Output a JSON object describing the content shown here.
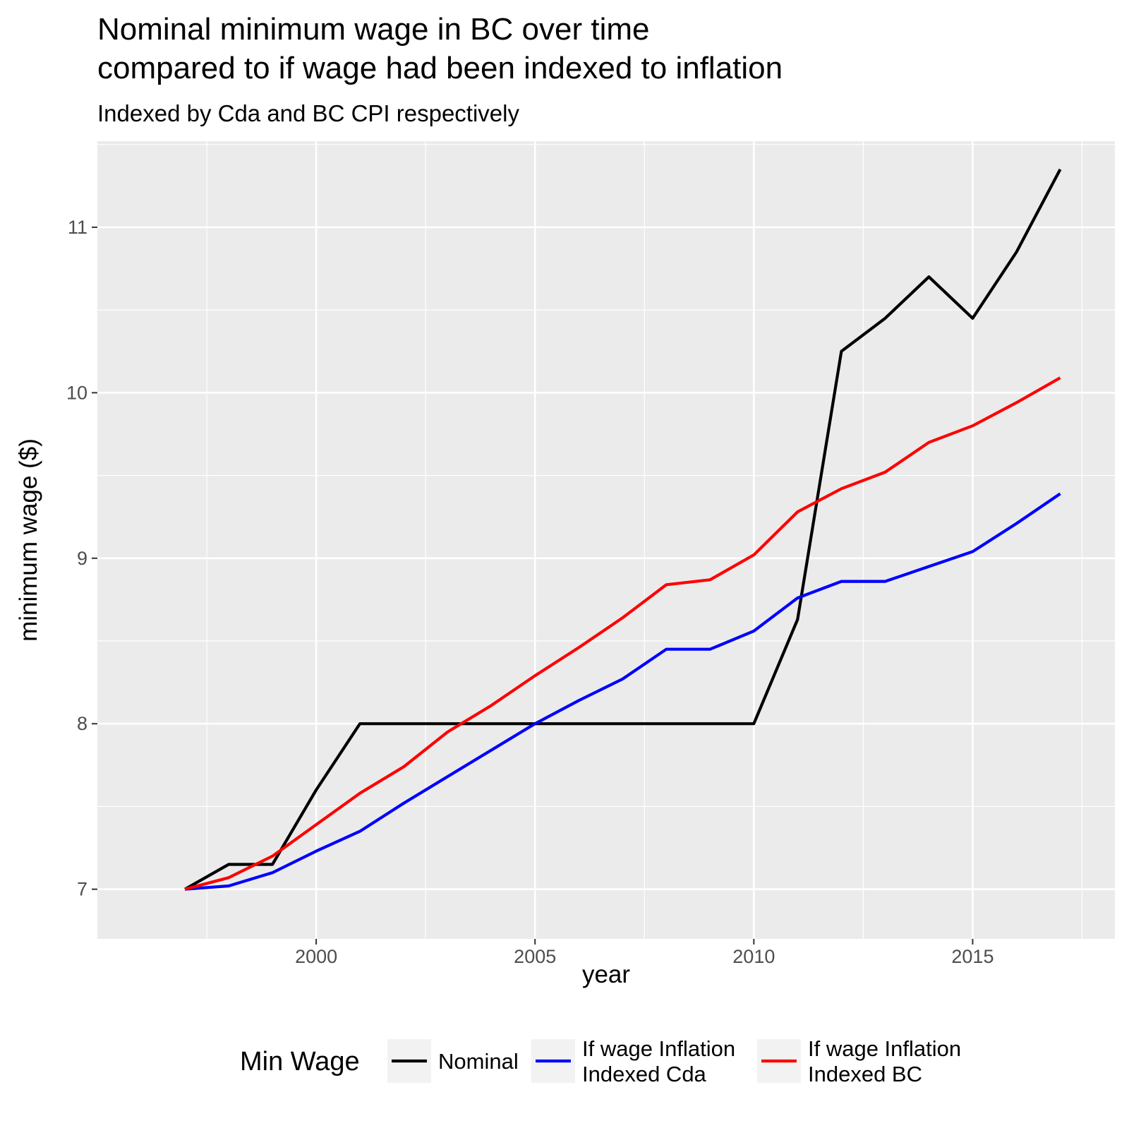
{
  "chart_data": {
    "type": "line",
    "title_lines": [
      "Nominal minimum wage in BC over time",
      "compared to if wage had been indexed to inflation"
    ],
    "subtitle": "Indexed by Cda and BC CPI respectively",
    "xlabel": "year",
    "ylabel": "minimum wage ($)",
    "x": [
      1997,
      1998,
      1999,
      2000,
      2001,
      2002,
      2003,
      2004,
      2005,
      2006,
      2007,
      2008,
      2009,
      2010,
      2011,
      2012,
      2013,
      2014,
      2015,
      2016,
      2017
    ],
    "xlim": [
      1995.0,
      2018.25
    ],
    "ylim": [
      6.7,
      11.52
    ],
    "xticks": [
      2000,
      2005,
      2010,
      2015
    ],
    "xtick_labels": [
      "2000",
      "2005",
      "2010",
      "2015"
    ],
    "yticks": [
      7,
      8,
      9,
      10,
      11
    ],
    "ytick_labels": [
      "7",
      "8",
      "9",
      "10",
      "11"
    ],
    "grid": true,
    "series": [
      {
        "name": "Nominal",
        "color": "#000000",
        "values": [
          7.0,
          7.15,
          7.15,
          7.6,
          8.0,
          8.0,
          8.0,
          8.0,
          8.0,
          8.0,
          8.0,
          8.0,
          8.0,
          8.0,
          8.63,
          10.25,
          10.45,
          10.7,
          10.45,
          10.85,
          11.35
        ]
      },
      {
        "name": "If wage Inflation Indexed Cda",
        "color": "#0000ff",
        "values": [
          7.0,
          7.02,
          7.1,
          7.23,
          7.35,
          7.52,
          7.68,
          7.84,
          8.0,
          8.14,
          8.27,
          8.45,
          8.45,
          8.56,
          8.76,
          8.86,
          8.86,
          8.95,
          9.04,
          9.21,
          9.39
        ]
      },
      {
        "name": "If wage Inflation Indexed BC",
        "color": "#ff0000",
        "values": [
          7.0,
          7.07,
          7.2,
          7.39,
          7.58,
          7.74,
          7.95,
          8.11,
          8.29,
          8.46,
          8.64,
          8.84,
          8.87,
          9.02,
          9.28,
          9.42,
          9.52,
          9.7,
          9.8,
          9.94,
          10.09
        ]
      }
    ],
    "legend": {
      "title": "Min Wage",
      "position": "bottom",
      "items": [
        {
          "label_lines": [
            "Nominal"
          ],
          "color": "#000000"
        },
        {
          "label_lines": [
            "If wage Inflation",
            "Indexed Cda"
          ],
          "color": "#0000ff"
        },
        {
          "label_lines": [
            "If wage Inflation",
            "Indexed BC"
          ],
          "color": "#ff0000"
        }
      ]
    }
  }
}
